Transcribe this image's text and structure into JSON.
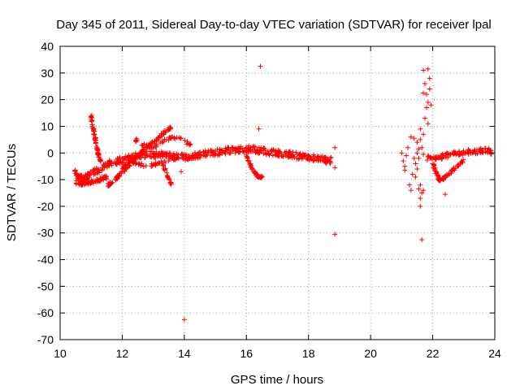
{
  "chart_data": {
    "type": "scatter",
    "title": "Day 345 of 2011, Sidereal Day-to-day VTEC variation (SDTVAR) for receiver lpal",
    "xlabel": "GPS time / hours",
    "ylabel": "SDTVAR / TECUs",
    "xlim": [
      10,
      24
    ],
    "ylim": [
      -70,
      40
    ],
    "xticks": [
      "10",
      "12",
      "14",
      "16",
      "18",
      "20",
      "22",
      "24"
    ],
    "xtick_values": [
      10,
      12,
      14,
      16,
      18,
      20,
      22,
      24
    ],
    "yticks": [
      "40",
      "30",
      "20",
      "10",
      "0",
      "-10",
      "-20",
      "-30",
      "-40",
      "-50",
      "-60",
      "-70"
    ],
    "ytick_values": [
      40,
      30,
      20,
      10,
      0,
      -10,
      -20,
      -30,
      -40,
      -50,
      -60,
      -70
    ],
    "grid": true,
    "marker": "+",
    "color": "#ff0000",
    "segments": [
      {
        "name": "main-band",
        "x": [
          10.45,
          10.6,
          10.8,
          11.0,
          11.3,
          11.6,
          11.9,
          12.2,
          12.5,
          12.8,
          13.1,
          13.4,
          13.7,
          14.0,
          14.3,
          14.6,
          14.9,
          15.2,
          15.5,
          15.8,
          16.1,
          16.4,
          16.7,
          17.0,
          17.3,
          17.6,
          17.9,
          18.2,
          18.5,
          18.75
        ],
        "y": [
          -7,
          -9,
          -9.5,
          -8,
          -6,
          -4,
          -3,
          -2,
          -1,
          -0.5,
          -0.5,
          -1,
          -1.5,
          -1.5,
          -1,
          -0.5,
          0,
          0.5,
          1,
          1.5,
          1.5,
          1,
          0.5,
          0,
          -0.5,
          -1,
          -1.5,
          -2,
          -2.5,
          -2.8
        ],
        "spread": 2.5,
        "density": 18
      },
      {
        "name": "left-lower-band",
        "x": [
          10.5,
          10.7,
          10.9,
          11.1,
          11.3,
          11.5
        ],
        "y": [
          -11,
          -11.5,
          -11,
          -10.5,
          -10,
          -9
        ],
        "spread": 1.5,
        "density": 12
      },
      {
        "name": "left-spike",
        "x": [
          11.0,
          11.05,
          11.1,
          11.15,
          11.2,
          11.25,
          11.3
        ],
        "y": [
          14,
          10,
          7,
          4,
          1,
          -1,
          -3
        ],
        "spread": 1.0,
        "density": 10
      },
      {
        "name": "dip-12",
        "x": [
          11.55,
          11.7,
          11.85,
          12.0,
          12.2,
          12.4
        ],
        "y": [
          -12,
          -11,
          -9,
          -7,
          -5,
          -3
        ],
        "spread": 1.2,
        "density": 10
      },
      {
        "name": "rise-12",
        "x": [
          12.0,
          12.2,
          12.4,
          12.6,
          12.8,
          13.0,
          13.2,
          13.4,
          13.6
        ],
        "y": [
          -6,
          -4,
          -2,
          0,
          2,
          4,
          6,
          8,
          9.5
        ],
        "spread": 1.2,
        "density": 10
      },
      {
        "name": "hump-13",
        "x": [
          12.4,
          12.7,
          13.0,
          13.3,
          13.6,
          13.9,
          14.2
        ],
        "y": [
          5,
          3,
          2,
          4,
          6,
          5,
          3
        ],
        "spread": 1.2,
        "density": 8
      },
      {
        "name": "hump-12-lower",
        "x": [
          12.2,
          12.5,
          12.8,
          13.1,
          13.4,
          13.7
        ],
        "y": [
          -2,
          -4,
          -5,
          -4,
          -3,
          -2
        ],
        "spread": 1.2,
        "density": 8
      },
      {
        "name": "drop-13-5",
        "x": [
          13.3,
          13.4,
          13.5,
          13.6
        ],
        "y": [
          -4,
          -7,
          -10,
          -12
        ],
        "spread": 0.8,
        "density": 8
      },
      {
        "name": "drop-16-5",
        "x": [
          16.0,
          16.1,
          16.2,
          16.3,
          16.4,
          16.5
        ],
        "y": [
          -1,
          -4,
          -6,
          -8,
          -9,
          -9
        ],
        "spread": 0.8,
        "density": 8
      },
      {
        "name": "right-band",
        "x": [
          21.8,
          22.0,
          22.2,
          22.4,
          22.6,
          22.8,
          23.0,
          23.2,
          23.4,
          23.6,
          23.8,
          23.9
        ],
        "y": [
          -2,
          -2,
          -1.5,
          -1,
          -0.5,
          0,
          0,
          0.5,
          0.5,
          1,
          1,
          0
        ],
        "spread": 1.8,
        "density": 10
      },
      {
        "name": "right-dip",
        "x": [
          22.0,
          22.1,
          22.2,
          22.3,
          22.4,
          22.6,
          22.8,
          23.0
        ],
        "y": [
          -4,
          -7,
          -10,
          -10,
          -9,
          -7,
          -5,
          -3
        ],
        "spread": 1.2,
        "density": 10
      }
    ],
    "scatter_points": [
      {
        "x": 16.45,
        "y": 32.5
      },
      {
        "x": 16.4,
        "y": 9
      },
      {
        "x": 13.9,
        "y": -7
      },
      {
        "x": 14.0,
        "y": -62.5
      },
      {
        "x": 18.85,
        "y": 2
      },
      {
        "x": 18.85,
        "y": -5.5
      },
      {
        "x": 18.85,
        "y": -30.5
      },
      {
        "x": 21.7,
        "y": 31
      },
      {
        "x": 21.85,
        "y": 31.5
      },
      {
        "x": 21.9,
        "y": 28
      },
      {
        "x": 21.75,
        "y": 26
      },
      {
        "x": 21.9,
        "y": 24
      },
      {
        "x": 21.8,
        "y": 22
      },
      {
        "x": 21.7,
        "y": 22.5
      },
      {
        "x": 21.85,
        "y": 19
      },
      {
        "x": 21.95,
        "y": 18
      },
      {
        "x": 21.8,
        "y": 17
      },
      {
        "x": 21.75,
        "y": 13
      },
      {
        "x": 21.85,
        "y": 11
      },
      {
        "x": 21.6,
        "y": 9
      },
      {
        "x": 21.7,
        "y": 7
      },
      {
        "x": 21.6,
        "y": 5
      },
      {
        "x": 21.5,
        "y": 4
      },
      {
        "x": 21.65,
        "y": 2
      },
      {
        "x": 21.7,
        "y": -0.5
      },
      {
        "x": 21.55,
        "y": -2
      },
      {
        "x": 21.5,
        "y": -6
      },
      {
        "x": 21.45,
        "y": -9
      },
      {
        "x": 21.6,
        "y": -12
      },
      {
        "x": 21.55,
        "y": -13.5
      },
      {
        "x": 21.65,
        "y": -15
      },
      {
        "x": 21.7,
        "y": -14
      },
      {
        "x": 21.6,
        "y": -17
      },
      {
        "x": 21.6,
        "y": -20
      },
      {
        "x": 21.65,
        "y": -32.5
      },
      {
        "x": 21.3,
        "y": -14
      },
      {
        "x": 21.25,
        "y": -12
      },
      {
        "x": 21.35,
        "y": -8
      },
      {
        "x": 21.1,
        "y": -5
      },
      {
        "x": 21.05,
        "y": -3
      },
      {
        "x": 21.15,
        "y": -1
      },
      {
        "x": 21.0,
        "y": 0
      },
      {
        "x": 21.2,
        "y": 2
      },
      {
        "x": 21.3,
        "y": 6
      },
      {
        "x": 21.4,
        "y": 5.5
      },
      {
        "x": 21.1,
        "y": -6.5
      },
      {
        "x": 22.4,
        "y": -15.5
      },
      {
        "x": 21.4,
        "y": -2
      },
      {
        "x": 21.5,
        "y": 0
      },
      {
        "x": 21.45,
        "y": -4
      },
      {
        "x": 21.55,
        "y": 1.5
      }
    ]
  }
}
